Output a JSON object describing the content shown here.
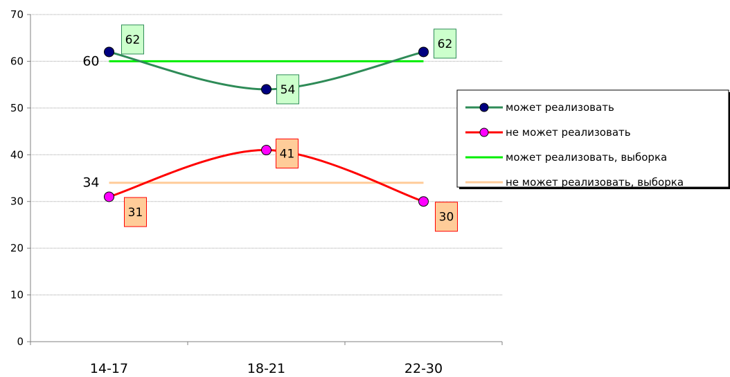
{
  "chart_data": {
    "type": "line",
    "categories": [
      "14-17",
      "18-21",
      "22-30"
    ],
    "ylim": [
      0,
      70
    ],
    "yticks": [
      0,
      10,
      20,
      30,
      40,
      50,
      60,
      70
    ],
    "grid": true,
    "legend_position": "right",
    "series": [
      {
        "name": "может реализовать",
        "values": [
          62,
          54,
          62
        ],
        "color": "#2e8b57",
        "marker": "circle",
        "marker_color": "#000080",
        "label_bg": "#ccffcc",
        "smooth": true
      },
      {
        "name": "не может реализовать",
        "values": [
          31,
          41,
          30
        ],
        "color": "#ff0000",
        "marker": "circle",
        "marker_color": "#ff00ff",
        "label_bg": "#ffcc99",
        "smooth": true
      },
      {
        "name": "может реализовать, выборка",
        "values": [
          60,
          60,
          60
        ],
        "color": "#00ee00",
        "marker": "none"
      },
      {
        "name": "не может реализовать, выборка",
        "values": [
          34,
          34,
          34
        ],
        "color": "#ffcc99",
        "marker": "none"
      }
    ],
    "reference_labels": [
      "60",
      "34"
    ],
    "data_labels": {
      "может реализовать": [
        "62",
        "54",
        "62"
      ],
      "не может реализовать": [
        "31",
        "41",
        "30"
      ]
    }
  }
}
